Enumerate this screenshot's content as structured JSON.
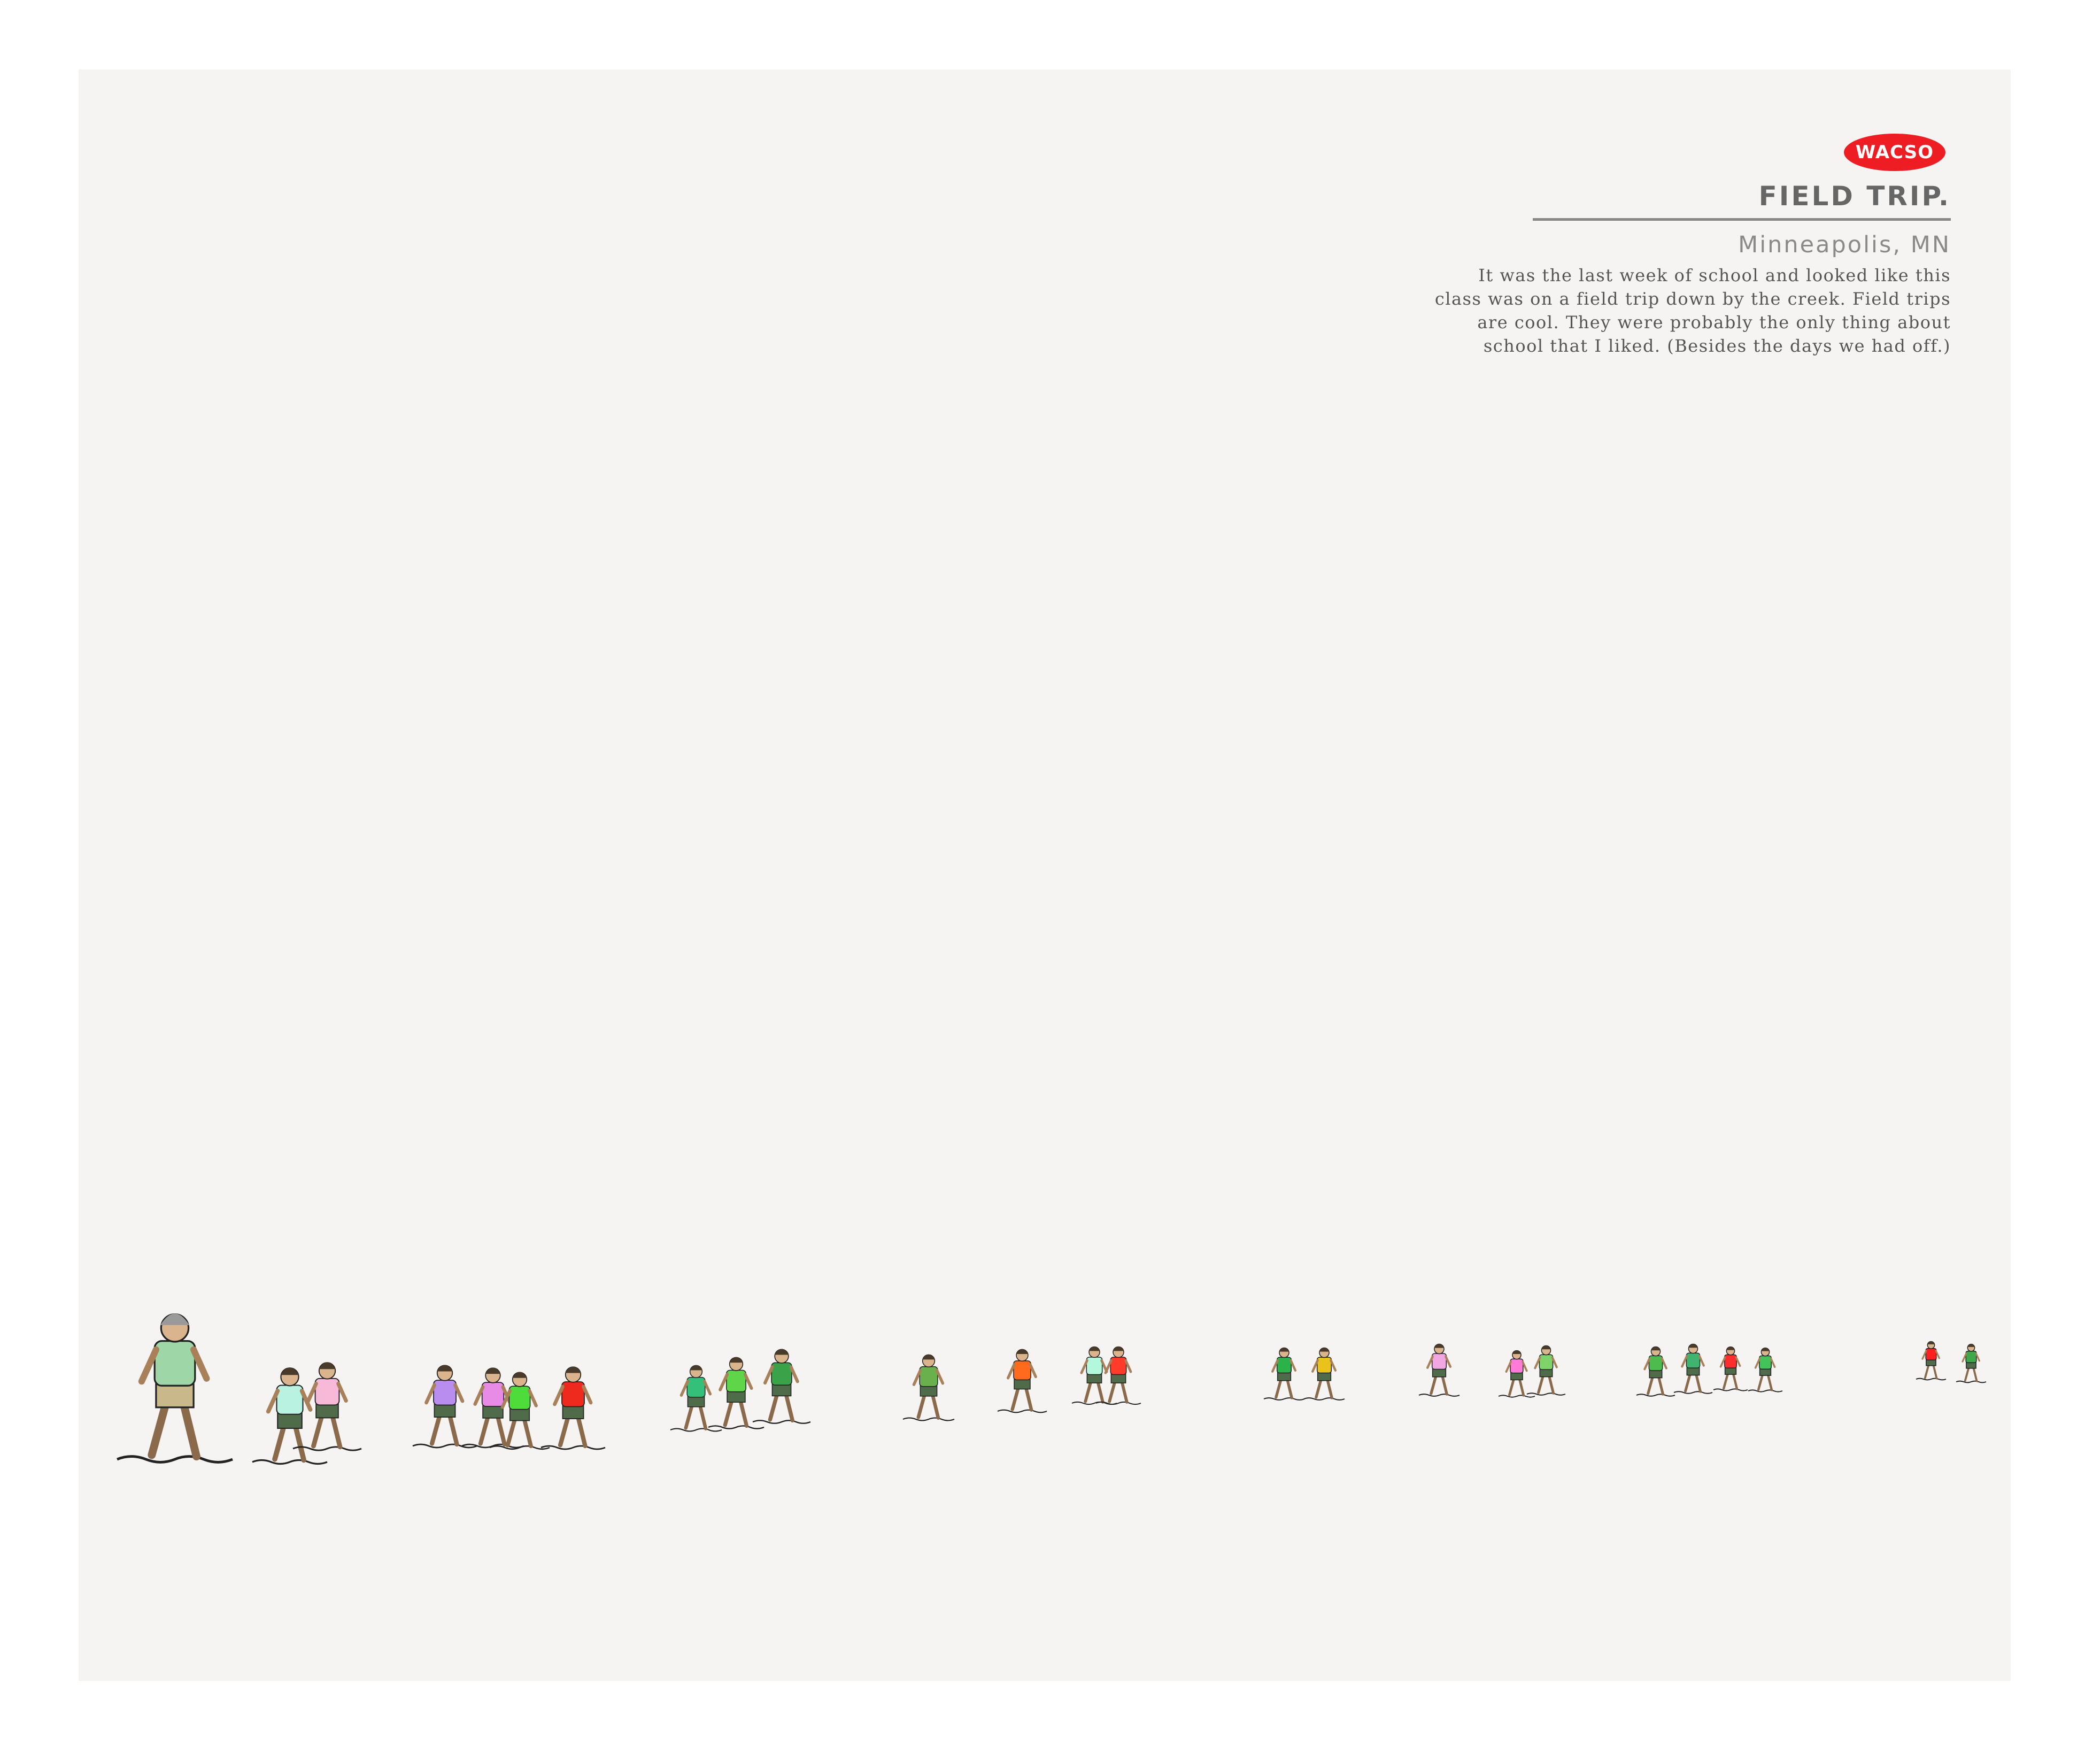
{
  "logo": {
    "text": "WACSO",
    "color": "#ee1d23"
  },
  "title": "FIELD TRIP.",
  "subtitle": "Minneapolis, MN",
  "description_lines": [
    "It was the last week of school and looked like this",
    "class was on a field trip down by the creek. Field trips",
    "are cool. They were probably the only thing about",
    "school that I liked. (Besides the days we had off.)"
  ],
  "illustration": {
    "subject": "teacher-and-children-walking-line",
    "shirt_colors": [
      "#9fd6a7",
      "#b9f2e0",
      "#f7b9d8",
      "#b98cf0",
      "#e88be6",
      "#4ddc3a",
      "#ee2a1f",
      "#35c07a",
      "#5fd64a",
      "#3aa34a",
      "#6ab04c",
      "#ff6a1c",
      "#b3f7dd",
      "#ff3b2a",
      "#2bb34a",
      "#e9c21c",
      "#f3a7e2",
      "#ff7ad9",
      "#7ed36a",
      "#4dbb4d",
      "#3fb36f",
      "#ff2e2e",
      "#43c35a",
      "#ff2020",
      "#3ea84a"
    ]
  }
}
